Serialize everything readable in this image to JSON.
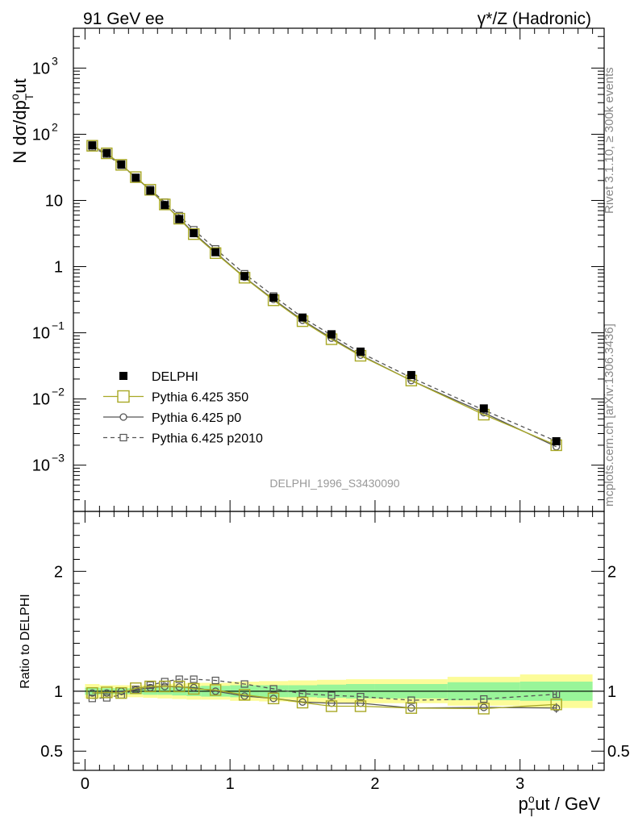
{
  "header": {
    "left": "91 GeV ee",
    "right": "γ*/Z (Hadronic)"
  },
  "side_labels": {
    "rivet": "Rivet 3.1.10, ≥ 300k events",
    "mcplots": "mcplots.cern.ch [arXiv:1306.3436]"
  },
  "analysis_id": "DELPHI_1996_S3430090",
  "chart_data": [
    {
      "type": "line",
      "panel": "main",
      "ylabel": "N dσ/dp",
      "ylabel_sup": "o",
      "ylabel_sub": "T",
      "ylabel_tail": "ut",
      "yscale": "log",
      "ylim": [
        0.0002,
        4000
      ],
      "xlim": [
        -0.08,
        3.58
      ],
      "y_ticks": [
        {
          "v": 0.001,
          "mant": "10",
          "exp": "−3"
        },
        {
          "v": 0.01,
          "mant": "10",
          "exp": "−2"
        },
        {
          "v": 0.1,
          "mant": "10",
          "exp": "−1"
        },
        {
          "v": 1,
          "mant": "1",
          "exp": ""
        },
        {
          "v": 10,
          "mant": "10",
          "exp": ""
        },
        {
          "v": 100,
          "mant": "10",
          "exp": "2"
        },
        {
          "v": 1000,
          "mant": "10",
          "exp": "3"
        }
      ],
      "x": [
        0.05,
        0.15,
        0.25,
        0.35,
        0.45,
        0.55,
        0.65,
        0.75,
        0.9,
        1.1,
        1.3,
        1.5,
        1.7,
        1.9,
        2.25,
        2.75,
        3.25
      ],
      "series": [
        {
          "name": "DELPHI",
          "color": "#000000",
          "style": "data",
          "values": [
            68,
            52,
            35,
            22,
            14,
            8.5,
            5.2,
            3.2,
            1.65,
            0.72,
            0.34,
            0.17,
            0.095,
            0.052,
            0.023,
            0.0072,
            0.0023
          ]
        },
        {
          "name": "Pythia 6.425 350",
          "color": "#a8a825",
          "style": "solid-bigsquare",
          "values": [
            67,
            51.5,
            34.5,
            22.5,
            14.5,
            8.7,
            5.3,
            3.1,
            1.6,
            0.68,
            0.31,
            0.15,
            0.08,
            0.045,
            0.019,
            0.0058,
            0.002
          ]
        },
        {
          "name": "Pythia 6.425 p0",
          "color": "#555555",
          "style": "solid-circle",
          "values": [
            67,
            51,
            35,
            22.2,
            14.3,
            8.7,
            5.4,
            3.2,
            1.65,
            0.69,
            0.32,
            0.155,
            0.083,
            0.046,
            0.019,
            0.0062,
            0.0019
          ]
        },
        {
          "name": "Pythia 6.425 p2010",
          "color": "#555555",
          "style": "dashed-square",
          "values": [
            64,
            49,
            34,
            22.3,
            14.7,
            9.4,
            5.9,
            3.6,
            1.85,
            0.78,
            0.36,
            0.17,
            0.092,
            0.05,
            0.021,
            0.0068,
            0.0023
          ]
        }
      ]
    },
    {
      "type": "line",
      "panel": "ratio",
      "ylabel": "Ratio to DELPHI",
      "ylim": [
        0.34,
        2.5
      ],
      "y_ticks": [
        0.5,
        1,
        2
      ],
      "xlabel_main": "p",
      "xlabel_sup": "o",
      "xlabel_sub": "T",
      "xlabel_tail": "ut / GeV",
      "x_ticks": [
        0,
        1,
        2,
        3
      ],
      "x": [
        0.05,
        0.15,
        0.25,
        0.35,
        0.45,
        0.55,
        0.65,
        0.75,
        0.9,
        1.1,
        1.3,
        1.5,
        1.7,
        1.9,
        2.25,
        2.75,
        3.25
      ],
      "bands": {
        "edges": [
          0.0,
          0.1,
          0.2,
          0.3,
          0.4,
          0.5,
          0.6,
          0.7,
          0.8,
          1.0,
          1.2,
          1.4,
          1.6,
          1.8,
          2.0,
          2.5,
          3.0,
          3.5
        ],
        "inner": [
          0.03,
          0.025,
          0.025,
          0.025,
          0.03,
          0.03,
          0.035,
          0.04,
          0.045,
          0.05,
          0.05,
          0.05,
          0.055,
          0.06,
          0.06,
          0.075,
          0.08
        ],
        "outer": [
          0.06,
          0.05,
          0.05,
          0.05,
          0.055,
          0.06,
          0.065,
          0.07,
          0.07,
          0.08,
          0.085,
          0.09,
          0.095,
          0.1,
          0.1,
          0.12,
          0.14
        ],
        "inner_color": "#99f599",
        "outer_color": "#fcfc99"
      },
      "series": [
        {
          "name": "Pythia 6.425 350",
          "color": "#a8a825",
          "style": "solid-bigsquare",
          "values": [
            0.985,
            0.99,
            0.985,
            1.025,
            1.04,
            1.04,
            1.04,
            1.02,
            1.01,
            0.97,
            0.94,
            0.905,
            0.875,
            0.875,
            0.86,
            0.855,
            0.89
          ]
        },
        {
          "name": "Pythia 6.425 p0",
          "color": "#555555",
          "style": "solid-circle",
          "values": [
            0.985,
            0.985,
            1.0,
            1.01,
            1.03,
            1.04,
            1.035,
            1.03,
            1.0,
            0.96,
            0.94,
            0.91,
            0.9,
            0.9,
            0.86,
            0.865,
            0.86
          ],
          "err_last": 0.04
        },
        {
          "name": "Pythia 6.425 p2010",
          "color": "#555555",
          "style": "dashed-square",
          "values": [
            0.94,
            0.945,
            0.97,
            1.015,
            1.05,
            1.08,
            1.1,
            1.1,
            1.09,
            1.06,
            1.02,
            0.98,
            0.965,
            0.955,
            0.925,
            0.935,
            0.975
          ],
          "err_last": 0.03
        }
      ]
    }
  ]
}
